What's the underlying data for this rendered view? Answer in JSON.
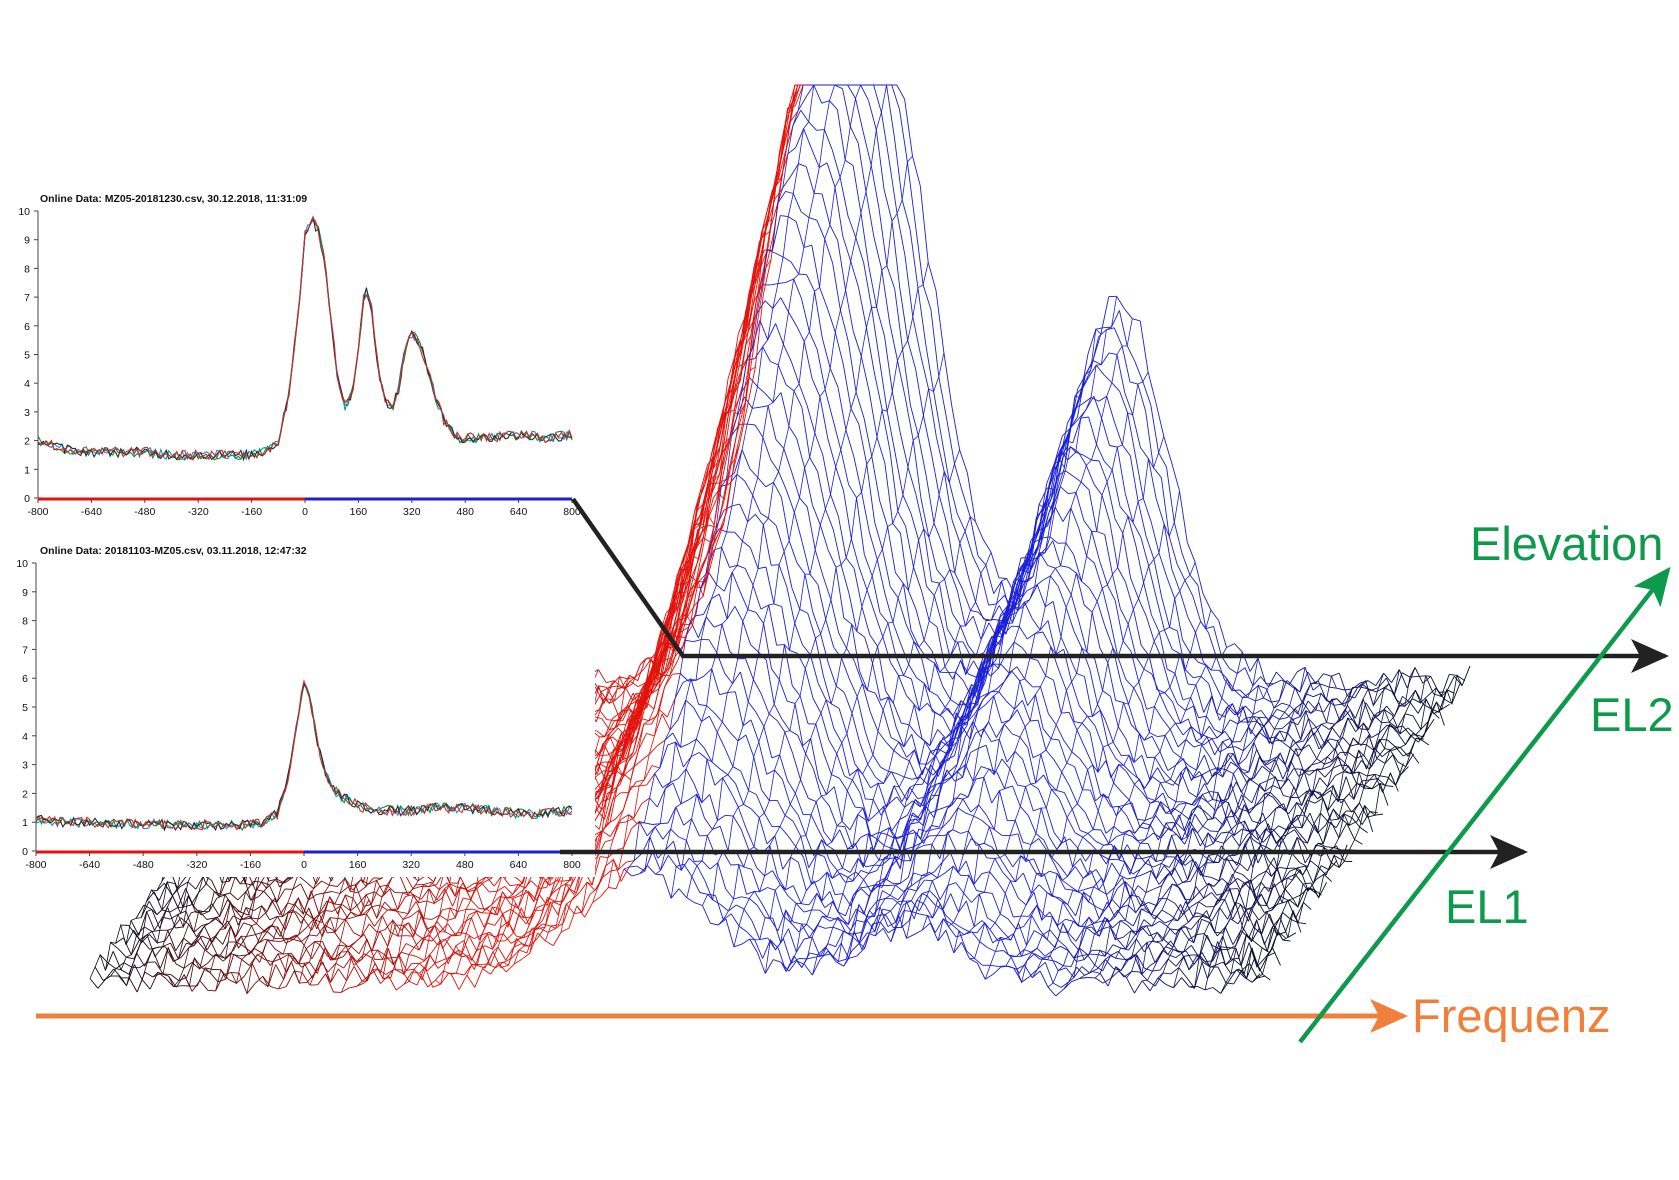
{
  "colors": {
    "frequenz": "#ef7f3a",
    "elevation": "#0e9a4c",
    "arrow": "#222222",
    "waterfall_red": "#e3120b",
    "waterfall_blue": "#1b1fd6",
    "waterfall_dark": "#0b0b1a",
    "axis_red": "#e3120b",
    "axis_blue": "#1b1fd6"
  },
  "labels": {
    "frequenz": "Frequenz",
    "elevation": "Elevation",
    "el1": "EL1",
    "el2": "EL2"
  },
  "chart_data": [
    {
      "type": "line",
      "title": "Online  Data: MZ05-20181230.csv,  30.12.2018,  11:31:09",
      "xlim": [
        -800,
        800
      ],
      "ylim": [
        0,
        10
      ],
      "x_ticks": [
        "-800",
        "-640",
        "-480",
        "-320",
        "-160",
        "0",
        "160",
        "320",
        "480",
        "640",
        "800"
      ],
      "y_ticks": [
        "0",
        "1",
        "2",
        "3",
        "4",
        "5",
        "6",
        "7",
        "8",
        "9",
        "10"
      ],
      "x": [
        -800,
        -720,
        -640,
        -560,
        -480,
        -400,
        -320,
        -240,
        -160,
        -120,
        -80,
        -50,
        -20,
        0,
        20,
        40,
        60,
        80,
        100,
        120,
        140,
        160,
        180,
        200,
        220,
        240,
        260,
        280,
        300,
        320,
        340,
        360,
        380,
        400,
        420,
        440,
        460,
        480,
        560,
        640,
        720,
        800
      ],
      "series_values": [
        [
          2.0,
          1.7,
          1.6,
          1.6,
          1.6,
          1.5,
          1.5,
          1.5,
          1.5,
          1.6,
          2.0,
          3.5,
          6.5,
          9.2,
          9.7,
          9.3,
          8.2,
          6.0,
          4.0,
          3.2,
          3.6,
          5.2,
          7.4,
          6.6,
          4.4,
          3.4,
          3.1,
          3.8,
          5.2,
          5.7,
          5.5,
          4.8,
          4.0,
          3.2,
          2.6,
          2.3,
          2.1,
          2.1,
          2.1,
          2.2,
          2.1,
          2.2
        ]
      ]
    },
    {
      "type": "line",
      "title": "Online  Data: 20181103-MZ05.csv,  03.11.2018,  12:47:32",
      "xlim": [
        -800,
        800
      ],
      "ylim": [
        0,
        10
      ],
      "x_ticks": [
        "-800",
        "-640",
        "-480",
        "-320",
        "-160",
        "0",
        "160",
        "320",
        "480",
        "640",
        "800"
      ],
      "y_ticks": [
        "0",
        "1",
        "2",
        "3",
        "4",
        "5",
        "6",
        "7",
        "8",
        "9",
        "10"
      ],
      "x": [
        -800,
        -720,
        -640,
        -560,
        -480,
        -400,
        -320,
        -240,
        -160,
        -120,
        -80,
        -50,
        -20,
        0,
        20,
        40,
        60,
        80,
        100,
        140,
        180,
        240,
        320,
        400,
        480,
        560,
        640,
        720,
        800
      ],
      "series_values": [
        [
          1.1,
          1.0,
          1.0,
          0.95,
          0.95,
          0.9,
          0.9,
          0.9,
          0.9,
          1.0,
          1.3,
          2.4,
          4.6,
          5.8,
          5.2,
          3.8,
          2.8,
          2.3,
          2.0,
          1.7,
          1.5,
          1.4,
          1.4,
          1.5,
          1.5,
          1.4,
          1.3,
          1.3,
          1.4
        ]
      ]
    }
  ]
}
